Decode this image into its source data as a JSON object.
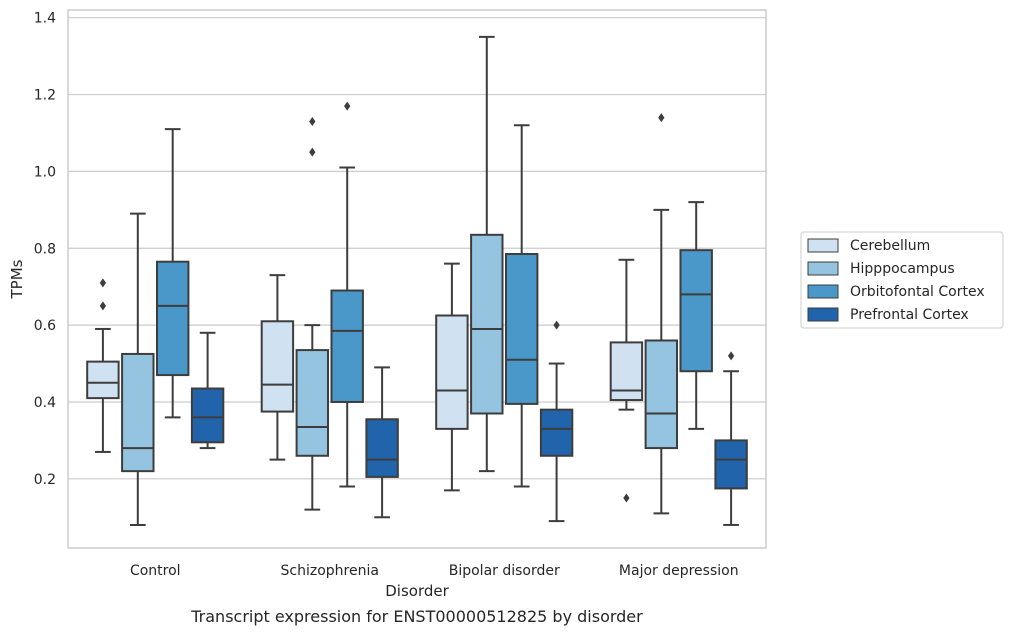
{
  "chart_data": {
    "type": "box",
    "title": "",
    "caption": "Transcript expression for ENST00000512825 by disorder",
    "xlabel": "Disorder",
    "ylabel": "TPMs",
    "ylim": [
      0.02,
      1.42
    ],
    "yticks": [
      0.2,
      0.4,
      0.6,
      0.8,
      1.0,
      1.2,
      1.4
    ],
    "ytick_labels": [
      "0.2",
      "0.4",
      "0.6",
      "0.8",
      "1.0",
      "1.2",
      "1.4"
    ],
    "categories": [
      "Control",
      "Schizophrenia",
      "Bipolar disorder",
      "Major depression"
    ],
    "grid": "horizontal",
    "legend_position": "right",
    "series": [
      {
        "name": "Cerebellum",
        "color": "#d0e1f2",
        "boxes": [
          {
            "whisker_low": 0.27,
            "q1": 0.41,
            "median": 0.45,
            "q3": 0.505,
            "whisker_high": 0.59,
            "outliers": [
              0.65,
              0.71
            ]
          },
          {
            "whisker_low": 0.25,
            "q1": 0.375,
            "median": 0.445,
            "q3": 0.61,
            "whisker_high": 0.73,
            "outliers": []
          },
          {
            "whisker_low": 0.17,
            "q1": 0.33,
            "median": 0.43,
            "q3": 0.625,
            "whisker_high": 0.76,
            "outliers": []
          },
          {
            "whisker_low": 0.38,
            "q1": 0.405,
            "median": 0.43,
            "q3": 0.555,
            "whisker_high": 0.77,
            "outliers": [
              0.15
            ]
          }
        ]
      },
      {
        "name": "Hipppocampus",
        "color": "#94c4df",
        "boxes": [
          {
            "whisker_low": 0.08,
            "q1": 0.22,
            "median": 0.28,
            "q3": 0.525,
            "whisker_high": 0.89,
            "outliers": []
          },
          {
            "whisker_low": 0.12,
            "q1": 0.26,
            "median": 0.335,
            "q3": 0.535,
            "whisker_high": 0.6,
            "outliers": [
              1.05,
              1.13
            ]
          },
          {
            "whisker_low": 0.22,
            "q1": 0.37,
            "median": 0.59,
            "q3": 0.835,
            "whisker_high": 1.35,
            "outliers": []
          },
          {
            "whisker_low": 0.11,
            "q1": 0.28,
            "median": 0.37,
            "q3": 0.56,
            "whisker_high": 0.9,
            "outliers": [
              1.14
            ]
          }
        ]
      },
      {
        "name": "Orbitofontal Cortex",
        "color": "#4a98c9",
        "boxes": [
          {
            "whisker_low": 0.36,
            "q1": 0.47,
            "median": 0.65,
            "q3": 0.765,
            "whisker_high": 1.11,
            "outliers": []
          },
          {
            "whisker_low": 0.18,
            "q1": 0.4,
            "median": 0.585,
            "q3": 0.69,
            "whisker_high": 1.01,
            "outliers": [
              1.17
            ]
          },
          {
            "whisker_low": 0.18,
            "q1": 0.395,
            "median": 0.51,
            "q3": 0.785,
            "whisker_high": 1.12,
            "outliers": []
          },
          {
            "whisker_low": 0.33,
            "q1": 0.48,
            "median": 0.68,
            "q3": 0.795,
            "whisker_high": 0.92,
            "outliers": []
          }
        ]
      },
      {
        "name": "Prefrontal Cortex",
        "color": "#2164ab",
        "boxes": [
          {
            "whisker_low": 0.28,
            "q1": 0.295,
            "median": 0.36,
            "q3": 0.435,
            "whisker_high": 0.58,
            "outliers": []
          },
          {
            "whisker_low": 0.1,
            "q1": 0.205,
            "median": 0.25,
            "q3": 0.355,
            "whisker_high": 0.49,
            "outliers": []
          },
          {
            "whisker_low": 0.09,
            "q1": 0.26,
            "median": 0.33,
            "q3": 0.38,
            "whisker_high": 0.5,
            "outliers": [
              0.6
            ]
          },
          {
            "whisker_low": 0.08,
            "q1": 0.175,
            "median": 0.25,
            "q3": 0.3,
            "whisker_high": 0.48,
            "outliers": [
              0.52
            ]
          }
        ]
      }
    ]
  }
}
